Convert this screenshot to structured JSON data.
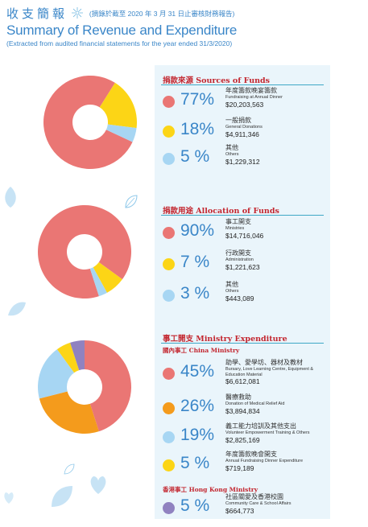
{
  "header": {
    "zh_title": "收支簡報",
    "zh_sub": "(摘錄於截至 2020 年 3 月 31 日止審核財務報告)",
    "en_title": "Summary of Revenue and Expenditure",
    "en_sub": "(Extracted from audited financial statements for the year ended 31/3/2020)"
  },
  "colors": {
    "red": "#ea7674",
    "yellow": "#fcd516",
    "blue": "#a7d6f3",
    "orange": "#f49b1c",
    "purple": "#9082c0",
    "accent": "#3a86c8",
    "heading_red": "#c3262f",
    "panel": "#eaf5fb"
  },
  "sections": {
    "sources": {
      "heading": "捐款來源 Sources of Funds",
      "items": [
        {
          "pct": "77%",
          "zh": "年度籌款晚宴籌款",
          "en": "Fundraising at Annual Dinner",
          "amount": "$20,203,563",
          "color": "red"
        },
        {
          "pct": "18%",
          "zh": "一般捐款",
          "en": "General Donations",
          "amount": "$4,911,346",
          "color": "yellow"
        },
        {
          "pct": "5 %",
          "zh": "其他",
          "en": "Others",
          "amount": "$1,229,312",
          "color": "blue"
        }
      ]
    },
    "allocation": {
      "heading": "捐款用途 Allocation of Funds",
      "items": [
        {
          "pct": "90%",
          "zh": "事工開支",
          "en": "Ministries",
          "amount": "$14,716,046",
          "color": "red"
        },
        {
          "pct": "7 %",
          "zh": "行政開支",
          "en": "Administration",
          "amount": "$1,221,623",
          "color": "yellow"
        },
        {
          "pct": "3 %",
          "zh": "其他",
          "en": "Others",
          "amount": "$443,089",
          "color": "blue"
        }
      ]
    },
    "ministry": {
      "heading": "事工開支 Ministry Expenditure",
      "china_heading": "國內事工 China Ministry",
      "hk_heading": "香港事工 Hong Kong Ministry",
      "items": [
        {
          "pct": "45%",
          "zh": "助學、愛學坊、器材及教材",
          "en": "Bursary, Love Learning Centre, Equipment & Education Material",
          "amount": "$6,612,081",
          "color": "red"
        },
        {
          "pct": "26%",
          "zh": "醫療救助",
          "en": "Donation of Medical Relief Aid",
          "amount": "$3,894,834",
          "color": "orange"
        },
        {
          "pct": "19%",
          "zh": "義工能力培訓及其他支出",
          "en": "Volunteer Empowerment Training & Others",
          "amount": "$2,825,169",
          "color": "blue"
        },
        {
          "pct": "5 %",
          "zh": "年度籌款晚會開支",
          "en": "Annual Fundraising Dinner Expenditure",
          "amount": "$719,189",
          "color": "yellow"
        },
        {
          "pct": "5 %",
          "zh": "社區關愛及香港校園",
          "en": "Community Care & School Affairs",
          "amount": "$664,773",
          "color": "purple"
        }
      ]
    }
  },
  "chart_data": [
    {
      "type": "pie",
      "categories": [
        "Fundraising at Annual Dinner",
        "General Donations",
        "Others"
      ],
      "values": [
        77,
        18,
        5
      ]
    },
    {
      "type": "pie",
      "categories": [
        "Ministries",
        "Administration",
        "Others"
      ],
      "values": [
        90,
        7,
        3
      ]
    },
    {
      "type": "pie",
      "categories": [
        "Bursary, Love Learning Centre, Equipment & Education Material",
        "Donation of Medical Relief Aid",
        "Volunteer Empowerment Training & Others",
        "Annual Fundraising Dinner Expenditure",
        "Community Care & School Affairs"
      ],
      "values": [
        45,
        26,
        19,
        5,
        5
      ]
    }
  ]
}
